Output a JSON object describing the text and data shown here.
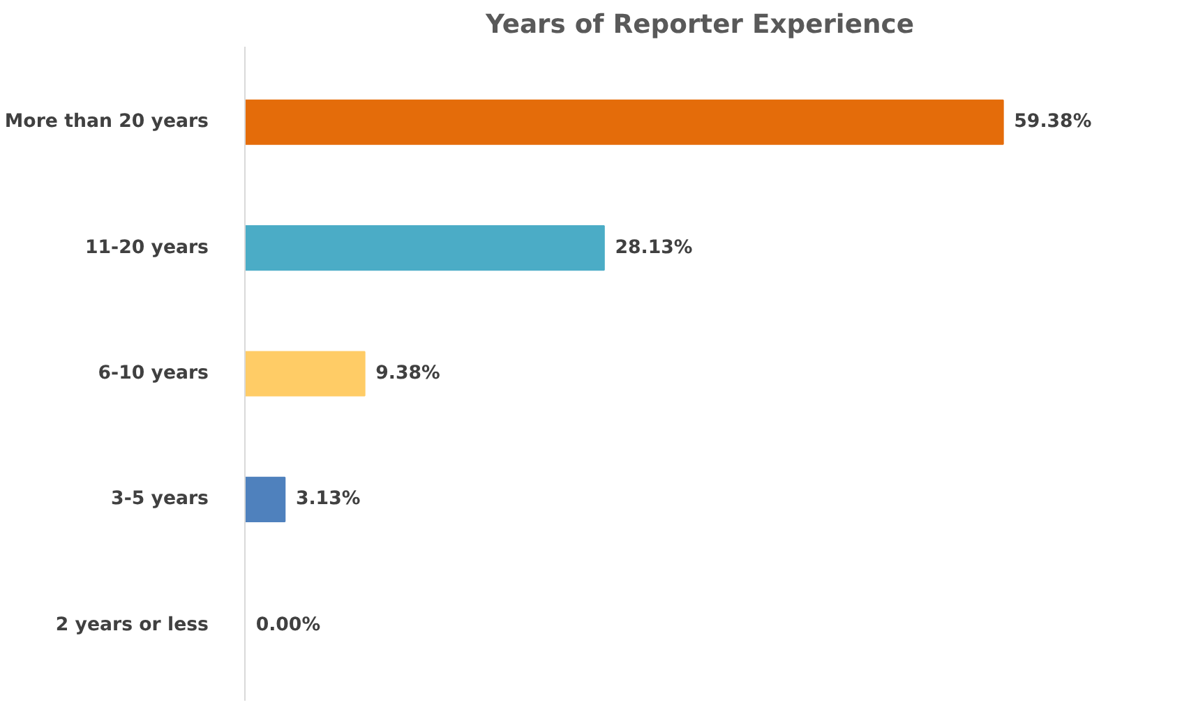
{
  "chart_data": {
    "type": "bar",
    "orientation": "horizontal",
    "title": "Years of Reporter Experience",
    "categories": [
      "More than 20 years",
      "11-20 years",
      "6-10 years",
      "3-5 years",
      "2 years or less"
    ],
    "values": [
      59.38,
      28.13,
      9.38,
      3.13,
      0.0
    ],
    "colors": [
      "#e46c0a",
      "#4bacc6",
      "#ffcc66",
      "#4f81bd",
      "#a5a5a5"
    ],
    "value_labels": [
      "59.38%",
      "28.13%",
      "9.38%",
      "3.13%",
      "0.00%"
    ]
  }
}
